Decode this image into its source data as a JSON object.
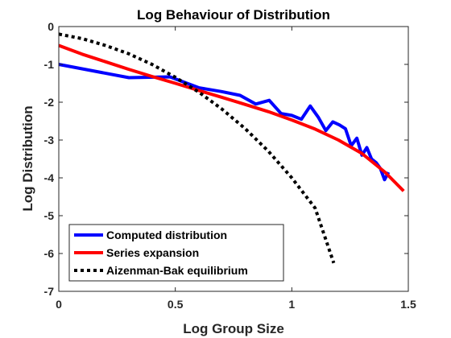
{
  "chart_data": {
    "type": "line",
    "title": "Log Behaviour of Distribution",
    "xlabel": "Log Group Size",
    "ylabel": "Log Distribution",
    "xlim": [
      0,
      1.5
    ],
    "ylim": [
      -7,
      0
    ],
    "xticks": [
      0,
      0.5,
      1,
      1.5
    ],
    "xtick_labels": [
      "0",
      "0.5",
      "1",
      "1.5"
    ],
    "yticks": [
      0,
      -1,
      -2,
      -3,
      -4,
      -5,
      -6,
      -7
    ],
    "ytick_labels": [
      "0",
      "-1",
      "-2",
      "-3",
      "-4",
      "-5",
      "-6",
      "-7"
    ],
    "grid": false,
    "legend_position": "bottom-left",
    "series": [
      {
        "name": "Computed distribution",
        "color": "#0000ff",
        "style": "solid",
        "x": [
          0,
          0.301,
          0.477,
          0.602,
          0.699,
          0.778,
          0.845,
          0.903,
          0.954,
          1.0,
          1.041,
          1.079,
          1.114,
          1.146,
          1.176,
          1.204,
          1.23,
          1.255,
          1.279,
          1.301,
          1.322,
          1.342,
          1.362,
          1.38,
          1.398,
          1.415
        ],
        "y": [
          -1.0,
          -1.35,
          -1.33,
          -1.62,
          -1.72,
          -1.82,
          -2.05,
          -1.95,
          -2.3,
          -2.35,
          -2.45,
          -2.1,
          -2.4,
          -2.75,
          -2.52,
          -2.6,
          -2.7,
          -3.15,
          -2.95,
          -3.4,
          -3.2,
          -3.5,
          -3.6,
          -3.75,
          -4.05,
          -3.85
        ]
      },
      {
        "name": "Series expansion",
        "color": "#ff0000",
        "style": "solid",
        "x": [
          0,
          0.1,
          0.2,
          0.3,
          0.4,
          0.5,
          0.6,
          0.7,
          0.8,
          0.9,
          1.0,
          1.1,
          1.2,
          1.3,
          1.4,
          1.48
        ],
        "y": [
          -0.5,
          -0.73,
          -0.93,
          -1.13,
          -1.32,
          -1.5,
          -1.69,
          -1.87,
          -2.06,
          -2.25,
          -2.47,
          -2.71,
          -3.0,
          -3.35,
          -3.85,
          -4.35
        ]
      },
      {
        "name": "Aizenman-Bak equilibrium",
        "color": "#000000",
        "style": "dotted",
        "x": [
          0,
          0.1,
          0.2,
          0.3,
          0.4,
          0.5,
          0.6,
          0.7,
          0.8,
          0.9,
          1.0,
          1.1,
          1.18
        ],
        "y": [
          -0.2,
          -0.32,
          -0.5,
          -0.72,
          -1.0,
          -1.34,
          -1.73,
          -2.18,
          -2.7,
          -3.3,
          -4.0,
          -4.8,
          -6.25
        ]
      }
    ]
  }
}
